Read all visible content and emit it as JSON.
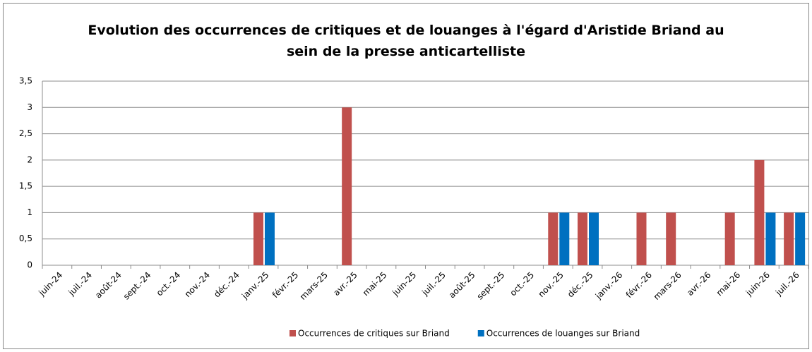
{
  "chart_data": {
    "type": "bar",
    "title": "Evolution des occurrences de critiques et de louanges à l'égard d'Aristide Briand au sein de la presse anticartelliste",
    "categories": [
      "juin-24",
      "juil.-24",
      "août-24",
      "sept.-24",
      "oct.-24",
      "nov.-24",
      "déc.-24",
      "janv.-25",
      "févr.-25",
      "mars-25",
      "avr.-25",
      "mai-25",
      "juin-25",
      "juil.-25",
      "août-25",
      "sept.-25",
      "oct.-25",
      "nov.-25",
      "déc.-25",
      "janv.-26",
      "févr.-26",
      "mars-26",
      "avr.-26",
      "mai-26",
      "juin-26",
      "juil.-26"
    ],
    "series": [
      {
        "name": "Occurrences de critiques sur Briand",
        "color": "#c0504d",
        "values": [
          0,
          0,
          0,
          0,
          0,
          0,
          0,
          1,
          0,
          0,
          3,
          0,
          0,
          0,
          0,
          0,
          0,
          1,
          1,
          0,
          1,
          1,
          0,
          1,
          2,
          1
        ]
      },
      {
        "name": "Occurrences de louanges sur Briand",
        "color": "#0070c0",
        "values": [
          0,
          0,
          0,
          0,
          0,
          0,
          0,
          1,
          0,
          0,
          0,
          0,
          0,
          0,
          0,
          0,
          0,
          1,
          1,
          0,
          0,
          0,
          0,
          0,
          1,
          1
        ]
      }
    ],
    "ylim": [
      0,
      3.5
    ],
    "yticks": [
      0,
      {
        "value": 0.5,
        "label": "0,5"
      },
      1,
      {
        "value": 1.5,
        "label": "1,5"
      },
      2,
      {
        "value": 2.5,
        "label": "2,5"
      },
      3,
      {
        "value": 3.5,
        "label": "3,5"
      }
    ],
    "grid": true,
    "legend": "bottom"
  }
}
